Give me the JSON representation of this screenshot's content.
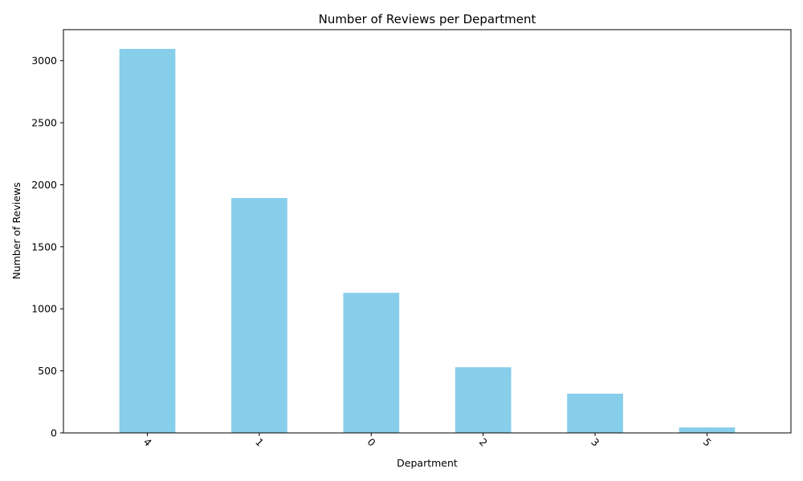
{
  "chart_data": {
    "type": "bar",
    "title": "Number of Reviews per Department",
    "xlabel": "Department",
    "ylabel": "Number of Reviews",
    "categories": [
      "4",
      "1",
      "0",
      "2",
      "3",
      "5"
    ],
    "values": [
      3095,
      1893,
      1129,
      529,
      316,
      44
    ],
    "ylim": [
      0,
      3250
    ],
    "yticks": [
      0,
      500,
      1000,
      1500,
      2000,
      2500,
      3000
    ],
    "bar_color": "#87ceeb",
    "grid": false,
    "legend": "none"
  }
}
